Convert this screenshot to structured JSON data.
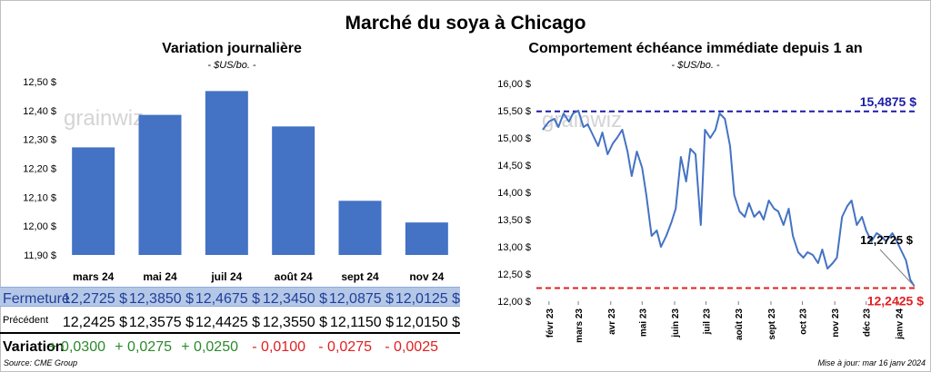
{
  "title": "Marché du soya à Chicago",
  "left_panel": {
    "title": "Variation journalière",
    "subtitle": "- $US/bo. -",
    "row_labels": {
      "close": "Fermeture",
      "prev": "Précédent",
      "var": "Variation"
    },
    "close_text": [
      "12,2725  $",
      "12,3850  $",
      "12,4675  $",
      "12,3450  $",
      "12,0875  $",
      "12,0125  $"
    ],
    "prev_text": [
      "12,2425  $",
      "12,3575  $",
      "12,4425  $",
      "12,3550  $",
      "12,1150  $",
      "12,0150  $"
    ],
    "var_text": [
      "+ 0,0300",
      "+ 0,0275",
      "+ 0,0250",
      "- 0,0100",
      "- 0,0275",
      "- 0,0025"
    ],
    "var_sign": [
      "pos",
      "pos",
      "pos",
      "neg",
      "neg",
      "neg"
    ]
  },
  "right_panel": {
    "title": "Comportement  échéance immédiate depuis 1 an",
    "subtitle": "- $US/bo. -",
    "max_label": "15,4875 $",
    "min_label": "12,2425 $",
    "last_label": "12,2725 $"
  },
  "watermark": "grainwiz",
  "footer": {
    "source": "Source: CME Group",
    "updated": "Mise à jour: mar 16 janv 2024"
  },
  "colors": {
    "bar": "#4472c4",
    "line": "#4472c4",
    "max_line": "#1c1ca8",
    "min_line": "#e02020",
    "positive": "#2b8a2b",
    "negative": "#e02020",
    "close_row": "#b4c7e7"
  },
  "chart_data": [
    {
      "type": "bar",
      "title": "Variation journalière",
      "subtitle": "- $US/bo. -",
      "categories": [
        "mars 24",
        "mai 24",
        "juil 24",
        "août 24",
        "sept 24",
        "nov 24"
      ],
      "values": [
        12.2725,
        12.385,
        12.4675,
        12.345,
        12.0875,
        12.0125
      ],
      "y_ticks": [
        11.9,
        12.0,
        12.1,
        12.2,
        12.3,
        12.4,
        12.5
      ],
      "y_tick_labels": [
        "11,90 $",
        "12,00 $",
        "12,10 $",
        "12,20 $",
        "12,30 $",
        "12,40 $",
        "12,50 $"
      ],
      "ylim": [
        11.9,
        12.5
      ],
      "grid": false
    },
    {
      "type": "line",
      "title": "Comportement  échéance immédiate depuis 1 an",
      "subtitle": "- $US/bo. -",
      "x_tick_labels": [
        "févr 23",
        "mars 23",
        "avr 23",
        "mai 23",
        "juin 23",
        "juil 23",
        "août 23",
        "sept 23",
        "oct 23",
        "nov 23",
        "déc 23",
        "janv 24"
      ],
      "x_tick_dates": [
        "2023-02-01",
        "2023-03-01",
        "2023-04-01",
        "2023-05-01",
        "2023-06-01",
        "2023-07-01",
        "2023-08-01",
        "2023-09-01",
        "2023-10-01",
        "2023-11-01",
        "2023-12-01",
        "2024-01-01"
      ],
      "xlim": [
        "2023-01-20",
        "2024-01-18"
      ],
      "y_ticks": [
        12.0,
        12.5,
        13.0,
        13.5,
        14.0,
        14.5,
        15.0,
        15.5,
        16.0
      ],
      "y_tick_labels": [
        "12,00 $",
        "12,50 $",
        "13,00 $",
        "13,50 $",
        "14,00 $",
        "14,50 $",
        "15,00 $",
        "15,50 $",
        "16,00 $"
      ],
      "ylim": [
        12.0,
        16.0
      ],
      "max": 15.4875,
      "min": 12.2425,
      "last": 12.2725,
      "x": [
        "2023-01-26",
        "2023-02-01",
        "2023-02-06",
        "2023-02-10",
        "2023-02-15",
        "2023-02-20",
        "2023-02-24",
        "2023-03-01",
        "2023-03-06",
        "2023-03-10",
        "2023-03-15",
        "2023-03-20",
        "2023-03-24",
        "2023-03-29",
        "2023-04-03",
        "2023-04-07",
        "2023-04-12",
        "2023-04-17",
        "2023-04-21",
        "2023-04-26",
        "2023-05-01",
        "2023-05-05",
        "2023-05-10",
        "2023-05-15",
        "2023-05-19",
        "2023-05-24",
        "2023-05-29",
        "2023-06-02",
        "2023-06-07",
        "2023-06-12",
        "2023-06-16",
        "2023-06-21",
        "2023-06-26",
        "2023-06-30",
        "2023-07-05",
        "2023-07-10",
        "2023-07-14",
        "2023-07-19",
        "2023-07-24",
        "2023-07-28",
        "2023-08-02",
        "2023-08-07",
        "2023-08-11",
        "2023-08-16",
        "2023-08-21",
        "2023-08-25",
        "2023-08-30",
        "2023-09-04",
        "2023-09-08",
        "2023-09-13",
        "2023-09-18",
        "2023-09-22",
        "2023-09-27",
        "2023-10-02",
        "2023-10-06",
        "2023-10-11",
        "2023-10-16",
        "2023-10-20",
        "2023-10-25",
        "2023-10-30",
        "2023-11-03",
        "2023-11-08",
        "2023-11-13",
        "2023-11-17",
        "2023-11-22",
        "2023-11-27",
        "2023-12-01",
        "2023-12-06",
        "2023-12-11",
        "2023-12-15",
        "2023-12-20",
        "2023-12-26",
        "2023-12-29",
        "2024-01-03",
        "2024-01-08",
        "2024-01-12",
        "2024-01-16"
      ],
      "y": [
        15.15,
        15.3,
        15.35,
        15.2,
        15.45,
        15.3,
        15.45,
        15.5,
        15.2,
        15.25,
        15.05,
        14.85,
        15.1,
        14.7,
        14.9,
        15.0,
        15.15,
        14.75,
        14.3,
        14.75,
        14.45,
        13.95,
        13.2,
        13.3,
        13.0,
        13.2,
        13.45,
        13.7,
        14.65,
        14.2,
        14.8,
        14.7,
        13.4,
        15.15,
        15.0,
        15.15,
        15.45,
        15.35,
        14.85,
        13.95,
        13.65,
        13.55,
        13.8,
        13.55,
        13.65,
        13.5,
        13.85,
        13.7,
        13.65,
        13.4,
        13.7,
        13.2,
        12.9,
        12.8,
        12.9,
        12.85,
        12.7,
        12.95,
        12.6,
        12.7,
        12.8,
        13.55,
        13.75,
        13.85,
        13.4,
        13.55,
        13.3,
        13.1,
        13.25,
        13.2,
        13.1,
        13.25,
        13.15,
        12.95,
        12.75,
        12.4,
        12.2725
      ]
    }
  ]
}
